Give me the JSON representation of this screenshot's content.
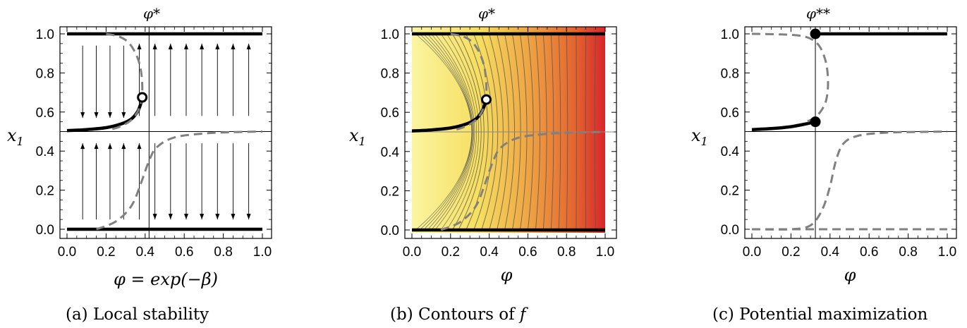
{
  "colors": {
    "solid": "#000000",
    "dashed": "#808080",
    "contour_line": "#555555",
    "gradient": [
      "#fbf5a0",
      "#f6de5f",
      "#efa543",
      "#e4622f",
      "#d8262b"
    ]
  },
  "figure_panels": [
    {
      "caption_label": "(a)",
      "caption_text": "Local stability",
      "top_label": "φ*",
      "ylabel": "x",
      "ylabel_sub": "1",
      "xlabel": "φ = exp(−β)"
    },
    {
      "caption_label": "(b)",
      "caption_text": "Contours of",
      "caption_var": "f",
      "top_label": "φ*",
      "ylabel": "x",
      "ylabel_sub": "1",
      "xlabel": "φ"
    },
    {
      "caption_label": "(c)",
      "caption_text": "Potential maximization",
      "top_label": "φ**",
      "ylabel": "x",
      "ylabel_sub": "1",
      "xlabel": "φ"
    }
  ],
  "chart_data": [
    {
      "type": "line",
      "xlim": [
        0,
        1
      ],
      "ylim": [
        0,
        1
      ],
      "xticks": [
        "0.0",
        "0.2",
        "0.4",
        "0.6",
        "0.8",
        "1.0"
      ],
      "yticks": [
        "0.0",
        "0.2",
        "0.4",
        "0.6",
        "0.8",
        "1.0"
      ],
      "ref_lines": {
        "phi_star": 0.42,
        "x1": 0.5
      },
      "series": [
        {
          "style": "solid-thick",
          "x": [
            0,
            1
          ],
          "y": [
            1,
            1
          ]
        },
        {
          "style": "solid-thick",
          "x": [
            0,
            1
          ],
          "y": [
            0,
            0
          ]
        },
        {
          "style": "solid-thick",
          "x": [
            0,
            0.1,
            0.2,
            0.28,
            0.33,
            0.36,
            0.375,
            0.385
          ],
          "y": [
            0.505,
            0.51,
            0.52,
            0.54,
            0.565,
            0.6,
            0.635,
            0.675
          ]
        },
        {
          "style": "dashed",
          "x": [
            0.2,
            0.27,
            0.32,
            0.36,
            0.38,
            0.385,
            0.37,
            0.33,
            0.27,
            0.22
          ],
          "y": [
            1.0,
            0.985,
            0.95,
            0.88,
            0.8,
            0.7,
            0.62,
            0.56,
            0.525,
            0.51
          ]
        },
        {
          "style": "dashed",
          "x": [
            0.15,
            0.25,
            0.33,
            0.38,
            0.42,
            0.46,
            0.55,
            0.7,
            0.85,
            1.0
          ],
          "y": [
            0.0,
            0.04,
            0.12,
            0.24,
            0.35,
            0.42,
            0.47,
            0.49,
            0.497,
            0.5
          ]
        }
      ],
      "markers": [
        {
          "x": 0.385,
          "y": 0.675,
          "style": "open"
        }
      ],
      "arrows": {
        "x_positions": [
          0.08,
          0.15,
          0.22,
          0.29,
          0.37,
          0.45,
          0.53,
          0.61,
          0.69,
          0.77,
          0.85,
          0.93
        ],
        "upper": [
          "down",
          "down",
          "down",
          "down",
          "up",
          "up",
          "up",
          "up",
          "up",
          "up",
          "up",
          "up"
        ],
        "lower": [
          "up",
          "up",
          "up",
          "up",
          "up",
          "down",
          "down",
          "down",
          "down",
          "down",
          "down",
          "down"
        ]
      }
    },
    {
      "type": "heatmap",
      "xlim": [
        0,
        1
      ],
      "ylim": [
        0,
        1
      ],
      "xticks": [
        "0.0",
        "0.2",
        "0.4",
        "0.6",
        "0.8",
        "1.0"
      ],
      "yticks": [
        "0.0",
        "0.2",
        "0.4",
        "0.6",
        "0.8",
        "1.0"
      ],
      "ref_lines": {
        "x1": 0.5
      },
      "contour_x_positions": [
        0.02,
        0.04,
        0.06,
        0.08,
        0.1,
        0.12,
        0.15,
        0.18,
        0.21,
        0.24,
        0.28,
        0.32,
        0.36,
        0.4,
        0.44,
        0.48,
        0.52,
        0.56,
        0.6,
        0.64,
        0.68,
        0.72,
        0.76,
        0.8,
        0.85,
        0.9,
        0.95
      ],
      "series": [
        {
          "style": "solid-thick",
          "x": [
            0,
            1
          ],
          "y": [
            1,
            1
          ]
        },
        {
          "style": "solid-thick",
          "x": [
            0,
            1
          ],
          "y": [
            0,
            0
          ]
        },
        {
          "style": "solid-thick",
          "x": [
            0,
            0.1,
            0.2,
            0.28,
            0.33,
            0.36,
            0.375,
            0.385
          ],
          "y": [
            0.505,
            0.51,
            0.52,
            0.54,
            0.565,
            0.6,
            0.635,
            0.665
          ]
        },
        {
          "style": "dashed",
          "x": [
            0.2,
            0.27,
            0.32,
            0.36,
            0.38,
            0.385,
            0.37,
            0.33,
            0.27,
            0.22
          ],
          "y": [
            1.0,
            0.985,
            0.95,
            0.88,
            0.8,
            0.7,
            0.62,
            0.56,
            0.525,
            0.51
          ]
        },
        {
          "style": "dashed",
          "x": [
            0.15,
            0.25,
            0.33,
            0.38,
            0.42,
            0.46,
            0.55,
            0.7,
            0.85,
            1.0
          ],
          "y": [
            0.0,
            0.04,
            0.12,
            0.24,
            0.35,
            0.42,
            0.47,
            0.49,
            0.497,
            0.5
          ]
        }
      ],
      "markers": [
        {
          "x": 0.385,
          "y": 0.665,
          "style": "open"
        }
      ]
    },
    {
      "type": "line",
      "xlim": [
        0,
        1
      ],
      "ylim": [
        0,
        1
      ],
      "xticks": [
        "0.0",
        "0.2",
        "0.4",
        "0.6",
        "0.8",
        "1.0"
      ],
      "yticks": [
        "0.0",
        "0.2",
        "0.4",
        "0.6",
        "0.8",
        "1.0"
      ],
      "ref_lines": {
        "phi_star": 0.325,
        "x1": 0.5
      },
      "series": [
        {
          "style": "solid-thick",
          "x": [
            0.325,
            1
          ],
          "y": [
            1,
            1
          ]
        },
        {
          "style": "solid-thick",
          "x": [
            0,
            0.1,
            0.2,
            0.28,
            0.325
          ],
          "y": [
            0.51,
            0.515,
            0.525,
            0.54,
            0.55
          ]
        },
        {
          "style": "dashed",
          "x": [
            0,
            0.15,
            0.25,
            0.31,
            0.35,
            0.38,
            0.39,
            0.38,
            0.35,
            0.31,
            0.28
          ],
          "y": [
            1.0,
            0.997,
            0.99,
            0.97,
            0.93,
            0.85,
            0.75,
            0.66,
            0.6,
            0.565,
            0.55
          ]
        },
        {
          "style": "dashed",
          "x": [
            0,
            0.2,
            0.3,
            0.36,
            0.4,
            0.43,
            0.47,
            0.55,
            0.7,
            0.85,
            1.0
          ],
          "y": [
            0.0,
            0.0,
            0.02,
            0.1,
            0.22,
            0.35,
            0.44,
            0.48,
            0.495,
            0.498,
            0.5
          ]
        },
        {
          "style": "dashed",
          "x": [
            0,
            1
          ],
          "y": [
            0.0,
            0.0
          ]
        }
      ],
      "markers": [
        {
          "x": 0.325,
          "y": 1.0,
          "style": "filled"
        },
        {
          "x": 0.325,
          "y": 0.55,
          "style": "filled"
        }
      ]
    }
  ]
}
